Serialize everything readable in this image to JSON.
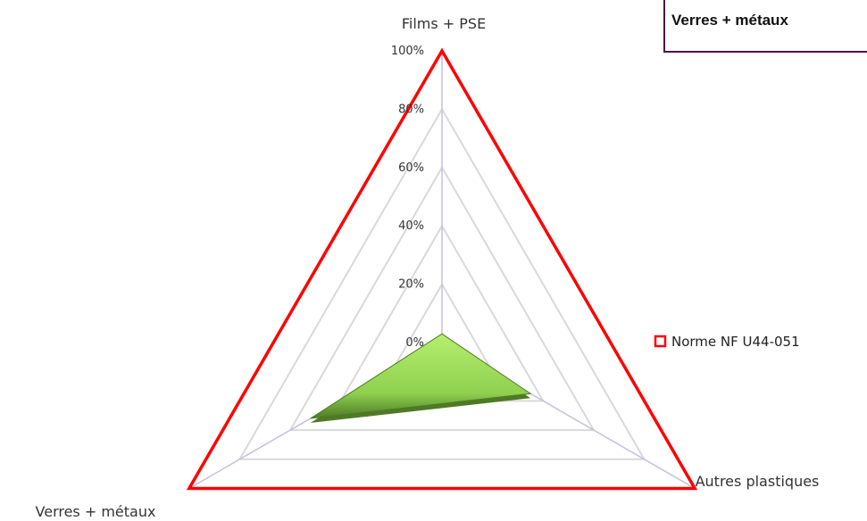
{
  "title_box": {
    "text": "Verres + métaux"
  },
  "colors": {
    "norme_outline": "#ff0000",
    "series_fill": "#8fd14f",
    "series_dark": "#4f7a25",
    "grid": "#d9d9d9",
    "spoke": "#c6c0dc"
  },
  "chart_data": {
    "type": "radar",
    "categories": [
      "Films + PSE",
      "Autres plastiques",
      "Verres + métaux"
    ],
    "axis_ticks": [
      "0%",
      "20%",
      "40%",
      "60%",
      "80%",
      "100%"
    ],
    "ylim": [
      0,
      100
    ],
    "grid": true,
    "legend_position": "right",
    "series": [
      {
        "name": "Norme NF U44-051",
        "values": [
          100,
          100,
          100
        ],
        "style": "outline"
      },
      {
        "values": [
          3,
          35,
          52
        ],
        "style": "filled"
      }
    ]
  }
}
